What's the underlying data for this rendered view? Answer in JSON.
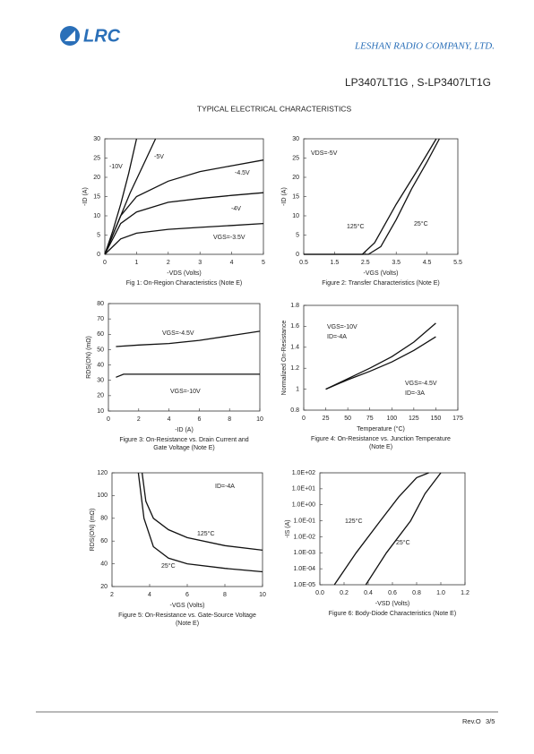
{
  "header": {
    "logo": "LRC",
    "company": "LESHAN RADIO COMPANY, LTD.",
    "part": "LP3407LT1G , S-LP3407LT1G",
    "section": "TYPICAL ELECTRICAL CHARACTERISTICS"
  },
  "footer": {
    "rev": "Rev.O",
    "page": "3/5"
  },
  "chart_data": [
    {
      "type": "line",
      "title": [
        "Fig 1: On-Region Characteristics (Note E)"
      ],
      "xlabel": "-VDS (Volts)",
      "ylabel": "-ID (A)",
      "xlim": [
        0,
        5
      ],
      "xticks": [
        0,
        1,
        2,
        3,
        4,
        5
      ],
      "ylim": [
        0,
        30
      ],
      "yticks": [
        0,
        5,
        10,
        15,
        20,
        25,
        30
      ],
      "series": [
        {
          "name": "-10V",
          "x": [
            0,
            0.25,
            0.5,
            0.75,
            1.0
          ],
          "values": [
            0,
            6,
            13,
            21,
            30
          ]
        },
        {
          "name": "-5V",
          "x": [
            0,
            0.4,
            0.8,
            1.2,
            1.6
          ],
          "values": [
            0,
            8,
            16,
            23,
            30
          ]
        },
        {
          "name": "-4.5V",
          "x": [
            0,
            0.5,
            1,
            2,
            3,
            4,
            5
          ],
          "values": [
            0,
            10,
            15,
            19,
            21.5,
            23,
            24.5
          ]
        },
        {
          "name": "-4V",
          "x": [
            0,
            0.5,
            1,
            2,
            3,
            4,
            5
          ],
          "values": [
            0,
            8,
            11,
            13.5,
            14.5,
            15.3,
            16
          ]
        },
        {
          "name": "VGS=-3.5V",
          "x": [
            0,
            0.5,
            1,
            2,
            3,
            4,
            5
          ],
          "values": [
            0,
            4,
            5.5,
            6.5,
            7,
            7.5,
            8
          ]
        }
      ]
    },
    {
      "type": "line",
      "title": [
        "Figure 2: Transfer Characteristics (Note E)"
      ],
      "xlabel": "-VGS (Volts)",
      "ylabel": "-ID (A)",
      "note": "VDS=-5V",
      "xlim": [
        0.5,
        5.5
      ],
      "xticks": [
        0.5,
        1.5,
        2.5,
        3.5,
        4.5,
        5.5
      ],
      "ylim": [
        0,
        30
      ],
      "yticks": [
        0,
        5,
        10,
        15,
        20,
        25,
        30
      ],
      "series": [
        {
          "name": "125°C",
          "x": [
            0.5,
            2.4,
            2.8,
            3.5,
            4.2,
            4.8
          ],
          "values": [
            0,
            0,
            3,
            13,
            22,
            30
          ]
        },
        {
          "name": "25°C",
          "x": [
            0.5,
            2.6,
            3,
            3.5,
            4,
            4.5,
            4.9
          ],
          "values": [
            0,
            0,
            2,
            9,
            17,
            24,
            30
          ]
        }
      ]
    },
    {
      "type": "line",
      "title": [
        "Figure 3: On-Resistance vs. Drain Current and",
        "Gate Voltage (Note E)"
      ],
      "xlabel": "-ID (A)",
      "ylabel": "RDS(ON) (mΩ)",
      "xlim": [
        0,
        10
      ],
      "xticks": [
        0,
        2,
        4,
        6,
        8,
        10
      ],
      "ylim": [
        10,
        80
      ],
      "yticks": [
        10,
        20,
        30,
        40,
        50,
        60,
        70,
        80
      ],
      "series": [
        {
          "name": "VGS=-4.5V",
          "x": [
            0.5,
            2,
            4,
            6,
            8,
            10
          ],
          "values": [
            52,
            53,
            54,
            56,
            59,
            62
          ]
        },
        {
          "name": "VGS=-10V",
          "x": [
            0.5,
            1,
            4,
            10
          ],
          "values": [
            32,
            34,
            34,
            34
          ]
        }
      ]
    },
    {
      "type": "line",
      "title": [
        "Figure 4: On-Resistance vs. Junction Temperature",
        "(Note E)"
      ],
      "xlabel": "Temperature (°C)",
      "ylabel": "Normalized On-Resistance",
      "xlim": [
        0,
        175
      ],
      "xticks": [
        0,
        25,
        50,
        75,
        100,
        125,
        150,
        175
      ],
      "ylim": [
        0.8,
        1.8
      ],
      "yticks": [
        0.8,
        1,
        1.2,
        1.4,
        1.6,
        1.8
      ],
      "series": [
        {
          "name": "VGS=-10V",
          "sub": "ID=-4A",
          "x": [
            25,
            50,
            75,
            100,
            125,
            150
          ],
          "values": [
            1,
            1.1,
            1.2,
            1.31,
            1.45,
            1.63
          ]
        },
        {
          "name": "VGS=-4.5V",
          "sub": "ID=-3A",
          "x": [
            25,
            50,
            75,
            100,
            125,
            150
          ],
          "values": [
            1,
            1.09,
            1.17,
            1.26,
            1.37,
            1.5
          ]
        }
      ]
    },
    {
      "type": "line",
      "title": [
        "Figure 5: On-Resistance vs. Gate-Source Voltage",
        "(Note E)"
      ],
      "xlabel": "-VGS (Volts)",
      "ylabel": "RDS(ON) (mΩ)",
      "note": "ID=-4A",
      "xlim": [
        2,
        10
      ],
      "xticks": [
        2,
        4,
        6,
        8,
        10
      ],
      "ylim": [
        20,
        120
      ],
      "yticks": [
        20,
        40,
        60,
        80,
        100,
        120
      ],
      "series": [
        {
          "name": "125°C",
          "x": [
            3.6,
            3.8,
            4.2,
            5,
            6,
            8,
            10
          ],
          "values": [
            120,
            95,
            80,
            70,
            63,
            56,
            52
          ]
        },
        {
          "name": "25°C",
          "x": [
            3.4,
            3.7,
            4.2,
            5,
            6,
            8,
            10
          ],
          "values": [
            120,
            80,
            55,
            45,
            40,
            36,
            33
          ]
        }
      ]
    },
    {
      "type": "line",
      "title": [
        "Figure 6: Body-Diode Characteristics (Note E)"
      ],
      "xlabel": "-VSD (Volts)",
      "ylabel": "-IS (A)",
      "yscale": "log",
      "xlim": [
        0,
        1.2
      ],
      "xticks": [
        {
          "value": 0,
          "label": "0.0"
        },
        0.2,
        0.4,
        0.6,
        0.8,
        {
          "value": 1,
          "label": "1.0"
        },
        1.2
      ],
      "ylim": [
        1e-05,
        100
      ],
      "yticks": [
        {
          "value": 1e-05,
          "label": "1.0E-05"
        },
        {
          "value": 0.0001,
          "label": "1.0E-04"
        },
        {
          "value": 0.001,
          "label": "1.0E-03"
        },
        {
          "value": 0.01,
          "label": "1.0E-02"
        },
        {
          "value": 0.1,
          "label": "1.0E-01"
        },
        {
          "value": 1,
          "label": "1.0E+00"
        },
        {
          "value": 10,
          "label": "1.0E+01"
        },
        {
          "value": 100,
          "label": "1.0E+02"
        }
      ],
      "series": [
        {
          "name": "125°C",
          "x": [
            0.12,
            0.3,
            0.5,
            0.65,
            0.8,
            0.9
          ],
          "values": [
            1e-05,
            0.001,
            0.1,
            3,
            50,
            100
          ]
        },
        {
          "name": "25°C",
          "x": [
            0.38,
            0.55,
            0.75,
            0.87,
            1.0
          ],
          "values": [
            1e-05,
            0.001,
            0.1,
            5,
            100
          ]
        }
      ]
    }
  ]
}
